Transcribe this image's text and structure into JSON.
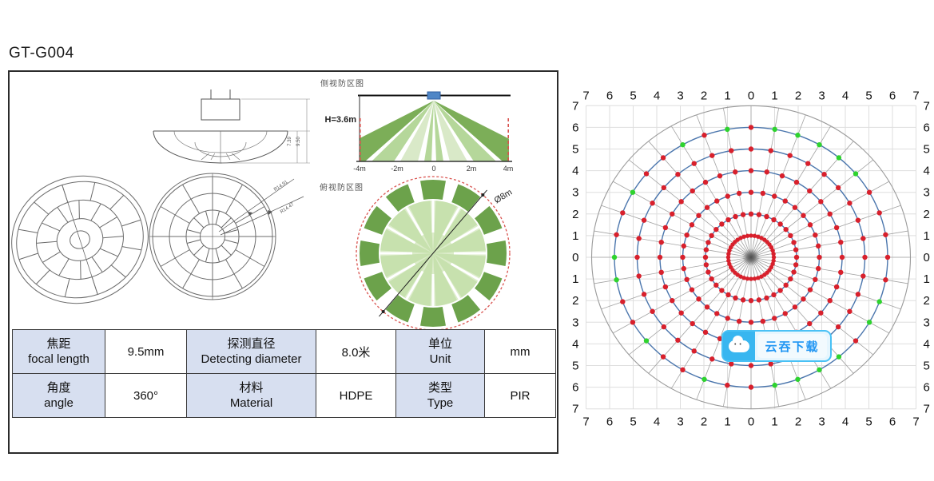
{
  "page": {
    "title": "GT-G004"
  },
  "panel": {
    "side_zone": {
      "title": "侧视防区图",
      "height_label": "H=3.6m",
      "ticks": [
        "-4m",
        "-2m",
        "0",
        "2m",
        "4m"
      ]
    },
    "top_zone": {
      "title": "俯视防区图",
      "diameter_label": "Ø8m"
    },
    "drawing": {
      "radius_labels": [
        "R14.91",
        "R14.47"
      ],
      "dim_labels": [
        "7.39",
        "9.50"
      ]
    },
    "table": {
      "rows": [
        [
          {
            "zh": "焦距",
            "en": "focal length"
          },
          {
            "v": "9.5mm"
          },
          {
            "zh": "探测直径",
            "en": "Detecting diameter"
          },
          {
            "v": "8.0米"
          },
          {
            "zh": "单位",
            "en": "Unit"
          },
          {
            "v": "mm"
          }
        ],
        [
          {
            "zh": "角度",
            "en": "angle"
          },
          {
            "v": "360°"
          },
          {
            "zh": "材料",
            "en": "Material"
          },
          {
            "v": "HDPE"
          },
          {
            "zh": "类型",
            "en": "Type"
          },
          {
            "v": "PIR"
          }
        ]
      ],
      "header_bg": "#d7dff0"
    },
    "zone_colors": {
      "beam_dark": "#7cae58",
      "beam_mid": "#b5d79a",
      "beam_light": "#d9e9c8",
      "sensor_blue": "#4f86c6",
      "dashed_red": "#d9534f",
      "segment_dark": "#6ca24b",
      "segment_mid": "#c3dfa9",
      "segment_light": "#dcecca"
    }
  },
  "watermark": {
    "label": "云吞下载",
    "icon": "cloud-mascot-icon"
  },
  "chart_data": {
    "type": "scatter",
    "subtype": "polar-grid",
    "title": "",
    "axis_range": [
      -7,
      7
    ],
    "axis_labels": [
      7,
      6,
      5,
      4,
      3,
      2,
      1,
      0,
      1,
      2,
      3,
      4,
      5,
      6,
      7
    ],
    "grid": true,
    "outer_circle_radius": 7,
    "blue_circle_radii": [
      2,
      3,
      4,
      5,
      6
    ],
    "radial_line_step_deg": 10,
    "dot_rings": [
      2,
      3,
      4,
      5,
      6
    ],
    "dot_angle_step_deg": 10,
    "inner_red_ring": {
      "radius": 1,
      "dot_count": 40
    },
    "green_dot_ring": 6,
    "green_dot_angles_deg": [
      350,
      10,
      20,
      30,
      40,
      50,
      110,
      120,
      140,
      150,
      160,
      170,
      200,
      230,
      260,
      270,
      300,
      330
    ],
    "colors": {
      "grid": "#dedede",
      "radial": "#a3a3a3",
      "outer_circle": "#9a9a9a",
      "blue_circle": "#4b76ad",
      "red_dot": "#d8202c",
      "green_dot": "#2ed32e",
      "label": "#111111",
      "center": "#444444"
    }
  }
}
